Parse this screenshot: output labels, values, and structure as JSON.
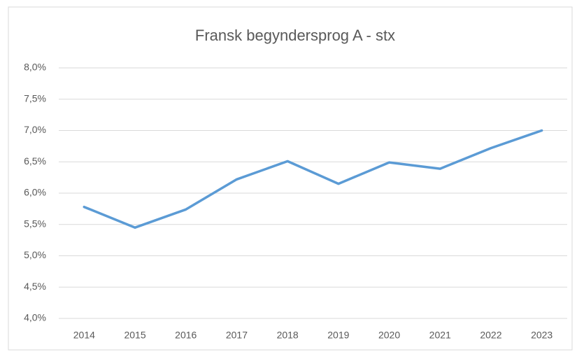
{
  "chart_data": {
    "type": "line",
    "title": "Fransk begyndersprog A - stx",
    "categories": [
      "2014",
      "2015",
      "2016",
      "2017",
      "2018",
      "2019",
      "2020",
      "2021",
      "2022",
      "2023"
    ],
    "series": [
      {
        "name": "stx",
        "color": "#5b9bd5",
        "values": [
          5.78,
          5.45,
          5.74,
          6.22,
          6.51,
          6.15,
          6.49,
          6.39,
          6.72,
          7.0
        ]
      }
    ],
    "ylim": [
      4.0,
      8.0
    ],
    "yticks": [
      {
        "value": 4.0,
        "label": "4,0%"
      },
      {
        "value": 4.5,
        "label": "4,5%"
      },
      {
        "value": 5.0,
        "label": "5,0%"
      },
      {
        "value": 5.5,
        "label": "5,5%"
      },
      {
        "value": 6.0,
        "label": "6,0%"
      },
      {
        "value": 6.5,
        "label": "6,5%"
      },
      {
        "value": 7.0,
        "label": "7,0%"
      },
      {
        "value": 7.5,
        "label": "7,5%"
      },
      {
        "value": 8.0,
        "label": "8,0%"
      }
    ],
    "grid": true
  }
}
